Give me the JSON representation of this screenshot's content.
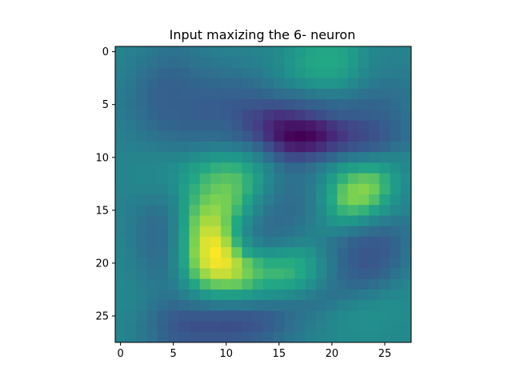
{
  "chart_data": {
    "type": "heatmap",
    "title": "Input maxizing the 6- neuron",
    "xlabel": "",
    "ylabel": "",
    "rows": 28,
    "cols": 28,
    "xlim": [
      -0.5,
      27.5
    ],
    "ylim": [
      27.5,
      -0.5
    ],
    "x_ticks": [
      0,
      5,
      10,
      15,
      20,
      25
    ],
    "y_ticks": [
      0,
      5,
      10,
      15,
      20,
      25
    ],
    "x_tick_labels": [
      "0",
      "5",
      "10",
      "15",
      "20",
      "25"
    ],
    "y_tick_labels": [
      "0",
      "5",
      "10",
      "15",
      "20",
      "25"
    ],
    "colormap": "viridis",
    "value_range": [
      0,
      1
    ],
    "grid": false,
    "values": [
      [
        0.56,
        0.54,
        0.52,
        0.5,
        0.48,
        0.47,
        0.48,
        0.5,
        0.52,
        0.53,
        0.54,
        0.55,
        0.55,
        0.56,
        0.58,
        0.6,
        0.64,
        0.68,
        0.72,
        0.74,
        0.74,
        0.72,
        0.68,
        0.62,
        0.58,
        0.56,
        0.55,
        0.55
      ],
      [
        0.55,
        0.53,
        0.5,
        0.47,
        0.45,
        0.44,
        0.45,
        0.47,
        0.49,
        0.5,
        0.51,
        0.52,
        0.53,
        0.54,
        0.57,
        0.6,
        0.65,
        0.69,
        0.73,
        0.75,
        0.75,
        0.73,
        0.68,
        0.62,
        0.57,
        0.55,
        0.54,
        0.54
      ],
      [
        0.54,
        0.51,
        0.47,
        0.44,
        0.42,
        0.41,
        0.42,
        0.44,
        0.45,
        0.46,
        0.47,
        0.48,
        0.49,
        0.51,
        0.54,
        0.58,
        0.63,
        0.67,
        0.71,
        0.72,
        0.72,
        0.7,
        0.65,
        0.59,
        0.55,
        0.53,
        0.52,
        0.52
      ],
      [
        0.53,
        0.5,
        0.45,
        0.42,
        0.4,
        0.39,
        0.4,
        0.41,
        0.42,
        0.42,
        0.43,
        0.43,
        0.44,
        0.46,
        0.49,
        0.53,
        0.57,
        0.6,
        0.63,
        0.65,
        0.65,
        0.63,
        0.59,
        0.54,
        0.51,
        0.49,
        0.49,
        0.5
      ],
      [
        0.52,
        0.49,
        0.44,
        0.41,
        0.39,
        0.38,
        0.39,
        0.39,
        0.39,
        0.39,
        0.39,
        0.39,
        0.39,
        0.4,
        0.42,
        0.44,
        0.46,
        0.48,
        0.5,
        0.52,
        0.53,
        0.52,
        0.5,
        0.47,
        0.45,
        0.45,
        0.46,
        0.48
      ],
      [
        0.51,
        0.48,
        0.44,
        0.41,
        0.39,
        0.38,
        0.38,
        0.38,
        0.37,
        0.37,
        0.36,
        0.35,
        0.34,
        0.33,
        0.32,
        0.32,
        0.34,
        0.36,
        0.38,
        0.4,
        0.42,
        0.43,
        0.42,
        0.41,
        0.41,
        0.42,
        0.44,
        0.47
      ],
      [
        0.52,
        0.49,
        0.45,
        0.42,
        0.4,
        0.39,
        0.38,
        0.38,
        0.37,
        0.37,
        0.36,
        0.33,
        0.29,
        0.25,
        0.21,
        0.18,
        0.19,
        0.22,
        0.26,
        0.3,
        0.34,
        0.36,
        0.36,
        0.37,
        0.38,
        0.4,
        0.43,
        0.46
      ],
      [
        0.53,
        0.51,
        0.47,
        0.44,
        0.42,
        0.41,
        0.4,
        0.4,
        0.4,
        0.4,
        0.39,
        0.35,
        0.29,
        0.23,
        0.16,
        0.1,
        0.07,
        0.07,
        0.09,
        0.13,
        0.19,
        0.24,
        0.27,
        0.3,
        0.33,
        0.37,
        0.41,
        0.45
      ],
      [
        0.54,
        0.52,
        0.5,
        0.48,
        0.46,
        0.45,
        0.44,
        0.44,
        0.44,
        0.44,
        0.43,
        0.4,
        0.35,
        0.28,
        0.18,
        0.08,
        0.02,
        0.0,
        0.02,
        0.07,
        0.14,
        0.2,
        0.25,
        0.28,
        0.32,
        0.36,
        0.41,
        0.45
      ],
      [
        0.55,
        0.54,
        0.53,
        0.52,
        0.51,
        0.5,
        0.5,
        0.51,
        0.52,
        0.53,
        0.53,
        0.51,
        0.47,
        0.41,
        0.31,
        0.2,
        0.12,
        0.1,
        0.12,
        0.17,
        0.23,
        0.28,
        0.32,
        0.35,
        0.38,
        0.42,
        0.46,
        0.49
      ],
      [
        0.56,
        0.56,
        0.56,
        0.56,
        0.56,
        0.57,
        0.58,
        0.61,
        0.64,
        0.66,
        0.67,
        0.66,
        0.62,
        0.55,
        0.45,
        0.36,
        0.3,
        0.29,
        0.32,
        0.36,
        0.42,
        0.47,
        0.51,
        0.53,
        0.55,
        0.56,
        0.56,
        0.56
      ],
      [
        0.57,
        0.57,
        0.58,
        0.58,
        0.59,
        0.61,
        0.65,
        0.7,
        0.74,
        0.77,
        0.78,
        0.77,
        0.73,
        0.65,
        0.56,
        0.48,
        0.43,
        0.43,
        0.46,
        0.52,
        0.59,
        0.66,
        0.7,
        0.72,
        0.72,
        0.68,
        0.63,
        0.59
      ],
      [
        0.57,
        0.57,
        0.58,
        0.58,
        0.59,
        0.62,
        0.68,
        0.74,
        0.79,
        0.82,
        0.83,
        0.82,
        0.77,
        0.69,
        0.59,
        0.51,
        0.47,
        0.47,
        0.51,
        0.58,
        0.68,
        0.77,
        0.82,
        0.84,
        0.83,
        0.77,
        0.68,
        0.61
      ],
      [
        0.56,
        0.56,
        0.56,
        0.56,
        0.57,
        0.61,
        0.69,
        0.77,
        0.82,
        0.85,
        0.86,
        0.83,
        0.77,
        0.67,
        0.57,
        0.5,
        0.46,
        0.47,
        0.52,
        0.61,
        0.73,
        0.83,
        0.88,
        0.89,
        0.86,
        0.78,
        0.68,
        0.6
      ],
      [
        0.55,
        0.54,
        0.53,
        0.52,
        0.53,
        0.58,
        0.69,
        0.79,
        0.85,
        0.88,
        0.87,
        0.82,
        0.73,
        0.62,
        0.53,
        0.47,
        0.45,
        0.46,
        0.52,
        0.62,
        0.75,
        0.84,
        0.88,
        0.87,
        0.82,
        0.73,
        0.64,
        0.58
      ],
      [
        0.55,
        0.53,
        0.5,
        0.48,
        0.49,
        0.56,
        0.7,
        0.82,
        0.89,
        0.9,
        0.87,
        0.79,
        0.68,
        0.57,
        0.49,
        0.45,
        0.44,
        0.46,
        0.52,
        0.6,
        0.71,
        0.78,
        0.8,
        0.78,
        0.72,
        0.65,
        0.59,
        0.55
      ],
      [
        0.55,
        0.52,
        0.48,
        0.45,
        0.46,
        0.55,
        0.71,
        0.85,
        0.92,
        0.92,
        0.86,
        0.75,
        0.62,
        0.52,
        0.46,
        0.44,
        0.45,
        0.48,
        0.53,
        0.58,
        0.64,
        0.67,
        0.66,
        0.62,
        0.57,
        0.53,
        0.5,
        0.5
      ],
      [
        0.55,
        0.52,
        0.47,
        0.44,
        0.45,
        0.55,
        0.72,
        0.87,
        0.95,
        0.95,
        0.88,
        0.74,
        0.59,
        0.5,
        0.46,
        0.46,
        0.48,
        0.51,
        0.54,
        0.56,
        0.56,
        0.54,
        0.51,
        0.47,
        0.44,
        0.43,
        0.44,
        0.47
      ],
      [
        0.56,
        0.52,
        0.47,
        0.44,
        0.45,
        0.55,
        0.73,
        0.88,
        0.97,
        0.98,
        0.92,
        0.78,
        0.64,
        0.55,
        0.51,
        0.52,
        0.54,
        0.56,
        0.57,
        0.54,
        0.49,
        0.44,
        0.4,
        0.37,
        0.36,
        0.37,
        0.41,
        0.46
      ],
      [
        0.56,
        0.53,
        0.48,
        0.45,
        0.46,
        0.56,
        0.73,
        0.89,
        0.97,
        1.0,
        0.96,
        0.86,
        0.74,
        0.67,
        0.64,
        0.65,
        0.67,
        0.67,
        0.64,
        0.57,
        0.49,
        0.42,
        0.37,
        0.34,
        0.34,
        0.36,
        0.41,
        0.47
      ],
      [
        0.57,
        0.54,
        0.5,
        0.47,
        0.47,
        0.56,
        0.72,
        0.87,
        0.96,
        0.99,
        0.98,
        0.93,
        0.85,
        0.79,
        0.76,
        0.76,
        0.76,
        0.74,
        0.68,
        0.59,
        0.5,
        0.42,
        0.37,
        0.34,
        0.35,
        0.38,
        0.43,
        0.49
      ],
      [
        0.57,
        0.55,
        0.52,
        0.49,
        0.49,
        0.55,
        0.68,
        0.82,
        0.91,
        0.95,
        0.95,
        0.92,
        0.87,
        0.82,
        0.79,
        0.79,
        0.78,
        0.75,
        0.68,
        0.59,
        0.5,
        0.43,
        0.39,
        0.37,
        0.38,
        0.42,
        0.47,
        0.52
      ],
      [
        0.58,
        0.56,
        0.53,
        0.51,
        0.5,
        0.53,
        0.62,
        0.73,
        0.81,
        0.85,
        0.86,
        0.85,
        0.81,
        0.77,
        0.75,
        0.74,
        0.72,
        0.68,
        0.62,
        0.55,
        0.49,
        0.45,
        0.43,
        0.43,
        0.45,
        0.49,
        0.53,
        0.56
      ],
      [
        0.58,
        0.57,
        0.54,
        0.51,
        0.49,
        0.49,
        0.54,
        0.6,
        0.66,
        0.69,
        0.7,
        0.7,
        0.68,
        0.65,
        0.63,
        0.62,
        0.6,
        0.57,
        0.53,
        0.5,
        0.48,
        0.48,
        0.49,
        0.51,
        0.53,
        0.56,
        0.58,
        0.59
      ],
      [
        0.58,
        0.56,
        0.53,
        0.49,
        0.45,
        0.43,
        0.44,
        0.46,
        0.48,
        0.5,
        0.51,
        0.51,
        0.5,
        0.49,
        0.48,
        0.48,
        0.48,
        0.48,
        0.48,
        0.49,
        0.51,
        0.54,
        0.57,
        0.59,
        0.6,
        0.61,
        0.61,
        0.6
      ],
      [
        0.57,
        0.55,
        0.51,
        0.46,
        0.41,
        0.37,
        0.35,
        0.35,
        0.35,
        0.35,
        0.35,
        0.35,
        0.35,
        0.36,
        0.38,
        0.41,
        0.44,
        0.47,
        0.5,
        0.53,
        0.56,
        0.59,
        0.61,
        0.62,
        0.62,
        0.62,
        0.61,
        0.6
      ],
      [
        0.56,
        0.54,
        0.5,
        0.45,
        0.4,
        0.35,
        0.32,
        0.31,
        0.31,
        0.31,
        0.3,
        0.31,
        0.32,
        0.34,
        0.37,
        0.41,
        0.45,
        0.49,
        0.52,
        0.55,
        0.58,
        0.6,
        0.61,
        0.62,
        0.62,
        0.61,
        0.6,
        0.59
      ],
      [
        0.56,
        0.54,
        0.5,
        0.46,
        0.41,
        0.37,
        0.35,
        0.34,
        0.34,
        0.34,
        0.34,
        0.35,
        0.36,
        0.38,
        0.41,
        0.44,
        0.48,
        0.51,
        0.54,
        0.56,
        0.58,
        0.6,
        0.6,
        0.61,
        0.61,
        0.6,
        0.59,
        0.59
      ]
    ]
  }
}
